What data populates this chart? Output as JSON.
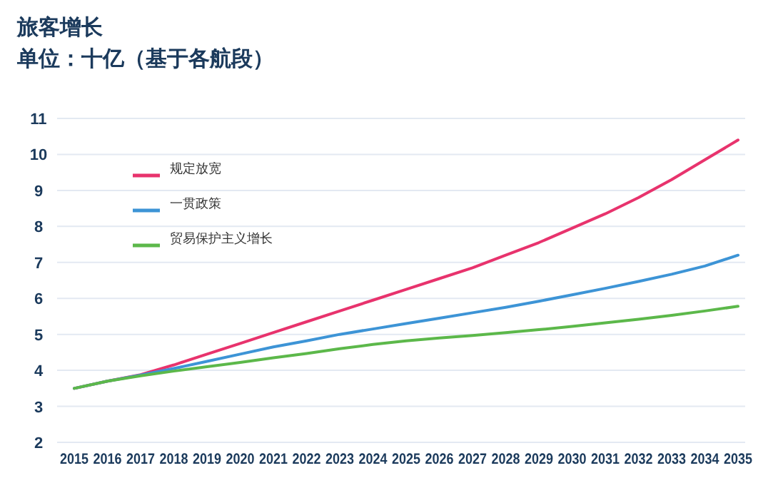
{
  "chart_data": {
    "type": "line",
    "title": "旅客增长",
    "subtitle": "单位：十亿（基于各航段）",
    "categories": [
      "2015",
      "2016",
      "2017",
      "2018",
      "2019",
      "2020",
      "2021",
      "2022",
      "2023",
      "2024",
      "2025",
      "2026",
      "2027",
      "2028",
      "2029",
      "2030",
      "2031",
      "2032",
      "2033",
      "2034",
      "2035"
    ],
    "series": [
      {
        "name": "规定放宽",
        "color": "#e8336d",
        "values": [
          3.5,
          3.7,
          3.88,
          4.15,
          4.45,
          4.75,
          5.05,
          5.35,
          5.65,
          5.95,
          6.25,
          6.55,
          6.85,
          7.2,
          7.55,
          7.95,
          8.35,
          8.8,
          9.3,
          9.85,
          10.4
        ]
      },
      {
        "name": "一贯政策",
        "color": "#3d94d6",
        "values": [
          3.5,
          3.7,
          3.87,
          4.05,
          4.25,
          4.45,
          4.65,
          4.82,
          5.0,
          5.15,
          5.3,
          5.45,
          5.6,
          5.75,
          5.92,
          6.1,
          6.28,
          6.47,
          6.67,
          6.9,
          7.2
        ]
      },
      {
        "name": "贸易保护主义增长",
        "color": "#5cb84a",
        "values": [
          3.5,
          3.7,
          3.85,
          3.98,
          4.1,
          4.22,
          4.35,
          4.47,
          4.6,
          4.72,
          4.82,
          4.9,
          4.97,
          5.05,
          5.13,
          5.22,
          5.32,
          5.42,
          5.53,
          5.65,
          5.78
        ]
      }
    ],
    "ylim": [
      2,
      11
    ],
    "yticks": [
      2,
      3,
      4,
      5,
      6,
      7,
      8,
      9,
      10,
      11
    ],
    "grid": "y",
    "legend": "top left",
    "marker": "none",
    "line_style": "solid"
  }
}
